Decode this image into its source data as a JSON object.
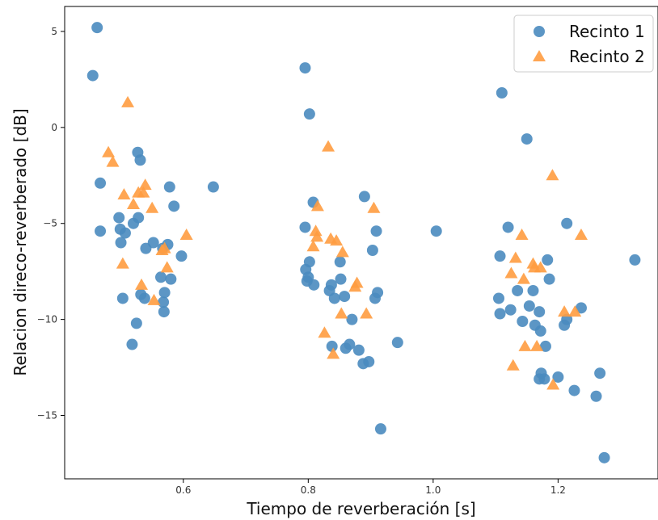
{
  "chart_data": {
    "type": "scatter",
    "title": "",
    "xlabel": "Tiempo de reverberación [s]",
    "ylabel": "Relacion direco-reverberado [dB]",
    "xlim": [
      0.41,
      1.36
    ],
    "ylim": [
      -18.3,
      6.3
    ],
    "xticks": [
      0.6,
      0.8,
      1.0,
      1.2
    ],
    "xtick_labels": [
      "0.6",
      "0.8",
      "1.0",
      "1.2"
    ],
    "yticks": [
      5,
      0,
      -5,
      -10,
      -15
    ],
    "ytick_labels": [
      "5",
      "0",
      "−5",
      "−10",
      "−15"
    ],
    "grid": false,
    "legend_position": "top-right",
    "series": [
      {
        "name": "Recinto 1",
        "marker": "circle",
        "color": "#4a8bbf",
        "points": [
          [
            0.455,
            2.7
          ],
          [
            0.462,
            5.2
          ],
          [
            0.467,
            -2.9
          ],
          [
            0.467,
            -5.4
          ],
          [
            0.497,
            -4.7
          ],
          [
            0.499,
            -5.3
          ],
          [
            0.5,
            -6.0
          ],
          [
            0.503,
            -8.9
          ],
          [
            0.507,
            -5.5
          ],
          [
            0.518,
            -11.3
          ],
          [
            0.52,
            -5.0
          ],
          [
            0.525,
            -10.2
          ],
          [
            0.527,
            -1.3
          ],
          [
            0.528,
            -4.7
          ],
          [
            0.531,
            -1.7
          ],
          [
            0.532,
            -8.7
          ],
          [
            0.538,
            -8.9
          ],
          [
            0.54,
            -6.3
          ],
          [
            0.552,
            -6.0
          ],
          [
            0.564,
            -7.8
          ],
          [
            0.567,
            -6.3
          ],
          [
            0.568,
            -9.1
          ],
          [
            0.569,
            -9.6
          ],
          [
            0.57,
            -8.6
          ],
          [
            0.575,
            -6.1
          ],
          [
            0.578,
            -3.1
          ],
          [
            0.58,
            -7.9
          ],
          [
            0.585,
            -4.1
          ],
          [
            0.597,
            -6.7
          ],
          [
            0.648,
            -3.1
          ],
          [
            0.795,
            3.1
          ],
          [
            0.795,
            -5.2
          ],
          [
            0.796,
            -7.4
          ],
          [
            0.798,
            -8.0
          ],
          [
            0.8,
            -7.8
          ],
          [
            0.802,
            0.7
          ],
          [
            0.802,
            -7.0
          ],
          [
            0.808,
            -3.9
          ],
          [
            0.809,
            -8.2
          ],
          [
            0.834,
            -8.5
          ],
          [
            0.837,
            -8.2
          ],
          [
            0.838,
            -11.4
          ],
          [
            0.842,
            -8.9
          ],
          [
            0.851,
            -7.0
          ],
          [
            0.852,
            -7.9
          ],
          [
            0.858,
            -8.8
          ],
          [
            0.86,
            -11.5
          ],
          [
            0.866,
            -11.3
          ],
          [
            0.87,
            -10.0
          ],
          [
            0.881,
            -11.6
          ],
          [
            0.888,
            -12.3
          ],
          [
            0.89,
            -3.6
          ],
          [
            0.897,
            -12.2
          ],
          [
            0.903,
            -6.4
          ],
          [
            0.907,
            -8.9
          ],
          [
            0.909,
            -5.4
          ],
          [
            0.911,
            -8.6
          ],
          [
            0.916,
            -15.7
          ],
          [
            0.943,
            -11.2
          ],
          [
            1.005,
            -5.4
          ],
          [
            1.105,
            -8.9
          ],
          [
            1.107,
            -9.7
          ],
          [
            1.107,
            -6.7
          ],
          [
            1.11,
            1.8
          ],
          [
            1.12,
            -5.2
          ],
          [
            1.124,
            -9.5
          ],
          [
            1.135,
            -8.5
          ],
          [
            1.143,
            -10.1
          ],
          [
            1.15,
            -0.6
          ],
          [
            1.154,
            -9.3
          ],
          [
            1.16,
            -8.5
          ],
          [
            1.163,
            -10.3
          ],
          [
            1.17,
            -9.6
          ],
          [
            1.17,
            -13.1
          ],
          [
            1.172,
            -10.6
          ],
          [
            1.173,
            -12.8
          ],
          [
            1.178,
            -13.1
          ],
          [
            1.18,
            -11.4
          ],
          [
            1.183,
            -6.9
          ],
          [
            1.186,
            -7.9
          ],
          [
            1.2,
            -13.0
          ],
          [
            1.21,
            -10.3
          ],
          [
            1.214,
            -5.0
          ],
          [
            1.214,
            -10.0
          ],
          [
            1.226,
            -13.7
          ],
          [
            1.237,
            -9.4
          ],
          [
            1.261,
            -14.0
          ],
          [
            1.267,
            -12.8
          ],
          [
            1.274,
            -17.2
          ],
          [
            1.323,
            -6.9
          ]
        ]
      },
      {
        "name": "Recinto 2",
        "marker": "triangle",
        "color": "#ff9c40",
        "points": [
          [
            0.48,
            -1.3
          ],
          [
            0.487,
            -1.8
          ],
          [
            0.503,
            -7.1
          ],
          [
            0.505,
            -3.5
          ],
          [
            0.511,
            1.3
          ],
          [
            0.52,
            -4.0
          ],
          [
            0.528,
            -3.4
          ],
          [
            0.533,
            -8.2
          ],
          [
            0.536,
            -3.4
          ],
          [
            0.539,
            -3.0
          ],
          [
            0.55,
            -4.2
          ],
          [
            0.553,
            -9.0
          ],
          [
            0.566,
            -6.4
          ],
          [
            0.57,
            -6.3
          ],
          [
            0.574,
            -7.3
          ],
          [
            0.605,
            -5.6
          ],
          [
            0.808,
            -6.2
          ],
          [
            0.812,
            -5.4
          ],
          [
            0.814,
            -5.7
          ],
          [
            0.815,
            -4.1
          ],
          [
            0.826,
            -10.7
          ],
          [
            0.832,
            -1.0
          ],
          [
            0.836,
            -5.8
          ],
          [
            0.84,
            -11.8
          ],
          [
            0.845,
            -5.9
          ],
          [
            0.853,
            -9.7
          ],
          [
            0.855,
            -6.5
          ],
          [
            0.875,
            -8.3
          ],
          [
            0.878,
            -8.1
          ],
          [
            0.893,
            -9.7
          ],
          [
            0.905,
            -4.2
          ],
          [
            1.125,
            -7.6
          ],
          [
            1.128,
            -12.4
          ],
          [
            1.132,
            -6.8
          ],
          [
            1.142,
            -5.6
          ],
          [
            1.145,
            -7.9
          ],
          [
            1.147,
            -11.4
          ],
          [
            1.16,
            -7.1
          ],
          [
            1.162,
            -7.3
          ],
          [
            1.166,
            -11.4
          ],
          [
            1.172,
            -7.3
          ],
          [
            1.191,
            -2.5
          ],
          [
            1.192,
            -13.4
          ],
          [
            1.21,
            -9.6
          ],
          [
            1.227,
            -9.6
          ],
          [
            1.237,
            -5.6
          ]
        ]
      }
    ]
  }
}
